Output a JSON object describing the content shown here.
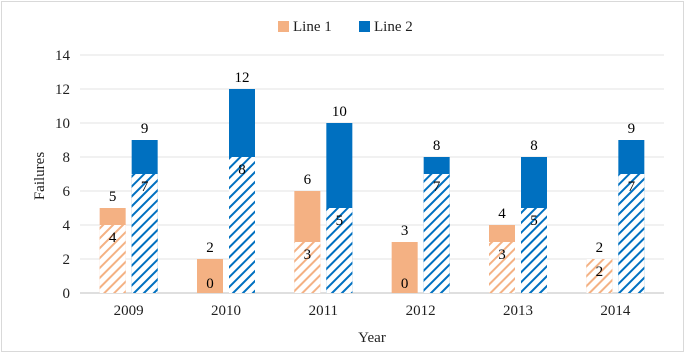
{
  "chart_data": {
    "type": "bar",
    "title": "",
    "xlabel": "Year",
    "ylabel": "Failures",
    "ylim": [
      0,
      14
    ],
    "yticks": [
      0,
      2,
      4,
      6,
      8,
      10,
      12,
      14
    ],
    "grid": true,
    "legend_position": "top-center",
    "categories": [
      "2009",
      "2010",
      "2011",
      "2012",
      "2013",
      "2014"
    ],
    "series": [
      {
        "name": "Line 1",
        "color": "#f4b183",
        "totals": [
          5,
          2,
          6,
          3,
          4,
          2
        ],
        "hatched_part": [
          4,
          0,
          3,
          0,
          3,
          2
        ]
      },
      {
        "name": "Line 2",
        "color": "#0070c0",
        "totals": [
          9,
          12,
          10,
          8,
          8,
          9
        ],
        "hatched_part": [
          7,
          8,
          5,
          7,
          5,
          7
        ]
      }
    ]
  }
}
